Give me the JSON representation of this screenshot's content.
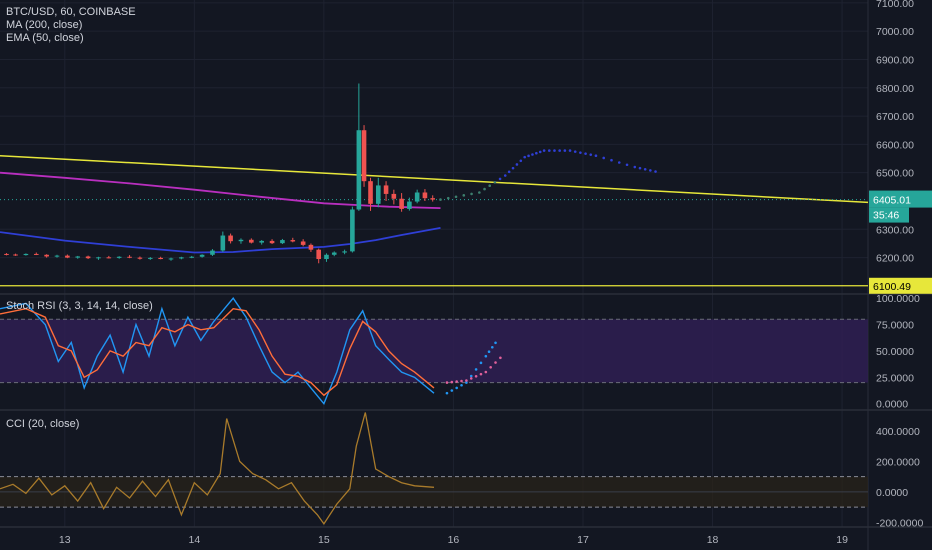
{
  "header": {
    "symbol": "BTC/USD, 60, COINBASE",
    "indicator_ma": "MA (200, close)",
    "indicator_ema": "EMA (50, close)"
  },
  "price_tags": {
    "last_price": "6405.01",
    "countdown": "35:46",
    "level_label": "6100.49"
  },
  "colors": {
    "background": "#131722",
    "up": "#26a69a",
    "down": "#ef5350",
    "ma_line": "#b92fbf",
    "ema_line": "#2f3fd6",
    "trend_line": "#e7e73a",
    "stoch_k": "#2196f3",
    "stoch_d": "#ff6d3a",
    "cci_line": "#a97b2b",
    "stoch_band": "#2f1f52"
  },
  "chart_data": [
    {
      "type": "candlestick",
      "title": "BTC/USD, 60, COINBASE",
      "x_ticks": [
        "13",
        "14",
        "15",
        "16",
        "17",
        "18",
        "19"
      ],
      "y_ticks": [
        "7100.00",
        "7000.00",
        "6900.00",
        "6800.00",
        "6700.00",
        "6600.00",
        "6500.00",
        "6300.00",
        "6200.00"
      ],
      "y_range": [
        6075,
        7110
      ],
      "x_range": [
        12.5,
        19.2
      ],
      "last_price": 6405.01,
      "horizontal_level": 6100.49,
      "trend_line": [
        [
          12.5,
          6560
        ],
        [
          19.2,
          6395
        ]
      ],
      "series": [
        {
          "name": "MA (200, close)",
          "values": [
            [
              12.5,
              6500
            ],
            [
              13.0,
              6482
            ],
            [
              13.5,
              6462
            ],
            [
              14.0,
              6440
            ],
            [
              14.5,
              6415
            ],
            [
              15.0,
              6392
            ],
            [
              15.5,
              6380
            ],
            [
              15.9,
              6375
            ]
          ]
        },
        {
          "name": "EMA (50, close)",
          "values": [
            [
              12.5,
              6290
            ],
            [
              13.0,
              6260
            ],
            [
              13.5,
              6238
            ],
            [
              14.0,
              6218
            ],
            [
              14.3,
              6220
            ],
            [
              14.6,
              6230
            ],
            [
              15.0,
              6238
            ],
            [
              15.2,
              6248
            ],
            [
              15.4,
              6262
            ],
            [
              15.6,
              6280
            ],
            [
              15.9,
              6305
            ]
          ]
        },
        {
          "name": "projection",
          "values": [
            [
              15.9,
              6405
            ],
            [
              16.2,
              6430
            ],
            [
              16.4,
              6490
            ],
            [
              16.55,
              6555
            ],
            [
              16.7,
              6578
            ],
            [
              16.9,
              6578
            ],
            [
              17.1,
              6560
            ],
            [
              17.4,
              6520
            ],
            [
              17.6,
              6500
            ]
          ]
        }
      ],
      "candles": [
        [
          12.55,
          6213,
          6216,
          6208,
          6211
        ],
        [
          12.62,
          6211,
          6214,
          6206,
          6209
        ],
        [
          12.7,
          6209,
          6215,
          6207,
          6213
        ],
        [
          12.78,
          6213,
          6218,
          6209,
          6210
        ],
        [
          12.86,
          6210,
          6212,
          6200,
          6204
        ],
        [
          12.94,
          6204,
          6210,
          6200,
          6207
        ],
        [
          13.02,
          6207,
          6211,
          6198,
          6200
        ],
        [
          13.1,
          6200,
          6206,
          6196,
          6204
        ],
        [
          13.18,
          6204,
          6207,
          6195,
          6198
        ],
        [
          13.26,
          6198,
          6203,
          6192,
          6201
        ],
        [
          13.34,
          6201,
          6206,
          6197,
          6199
        ],
        [
          13.42,
          6199,
          6205,
          6196,
          6203
        ],
        [
          13.5,
          6203,
          6209,
          6198,
          6200
        ],
        [
          13.58,
          6200,
          6204,
          6193,
          6196
        ],
        [
          13.66,
          6196,
          6202,
          6192,
          6199
        ],
        [
          13.74,
          6199,
          6203,
          6194,
          6195
        ],
        [
          13.82,
          6195,
          6200,
          6189,
          6197
        ],
        [
          13.9,
          6197,
          6203,
          6194,
          6201
        ],
        [
          13.98,
          6201,
          6206,
          6198,
          6203
        ],
        [
          14.06,
          6203,
          6212,
          6200,
          6210
        ],
        [
          14.14,
          6210,
          6230,
          6206,
          6225
        ],
        [
          14.22,
          6225,
          6292,
          6220,
          6278
        ],
        [
          14.28,
          6278,
          6285,
          6250,
          6258
        ],
        [
          14.36,
          6258,
          6268,
          6249,
          6263
        ],
        [
          14.44,
          6263,
          6268,
          6250,
          6253
        ],
        [
          14.52,
          6253,
          6262,
          6246,
          6259
        ],
        [
          14.6,
          6259,
          6265,
          6248,
          6251
        ],
        [
          14.68,
          6251,
          6266,
          6248,
          6262
        ],
        [
          14.76,
          6262,
          6270,
          6254,
          6257
        ],
        [
          14.84,
          6257,
          6265,
          6240,
          6245
        ],
        [
          14.9,
          6245,
          6250,
          6220,
          6228
        ],
        [
          14.96,
          6228,
          6232,
          6180,
          6195
        ],
        [
          15.02,
          6195,
          6215,
          6185,
          6210
        ],
        [
          15.08,
          6210,
          6222,
          6205,
          6218
        ],
        [
          15.16,
          6218,
          6228,
          6212,
          6222
        ],
        [
          15.22,
          6222,
          6380,
          6218,
          6370
        ],
        [
          15.27,
          6370,
          6815,
          6365,
          6650
        ],
        [
          15.31,
          6650,
          6668,
          6450,
          6470
        ],
        [
          15.36,
          6470,
          6482,
          6365,
          6390
        ],
        [
          15.42,
          6390,
          6482,
          6378,
          6455
        ],
        [
          15.48,
          6455,
          6470,
          6400,
          6425
        ],
        [
          15.54,
          6425,
          6440,
          6388,
          6408
        ],
        [
          15.6,
          6408,
          6428,
          6362,
          6372
        ],
        [
          15.66,
          6372,
          6412,
          6366,
          6398
        ],
        [
          15.72,
          6398,
          6440,
          6392,
          6430
        ],
        [
          15.78,
          6430,
          6442,
          6400,
          6410
        ],
        [
          15.84,
          6410,
          6420,
          6398,
          6405
        ]
      ]
    },
    {
      "type": "line",
      "title": "Stoch RSI (3, 3, 14, 14, close)",
      "y_ticks": [
        "100.0000",
        "75.0000",
        "50.0000",
        "25.0000",
        "0.0000"
      ],
      "y_range": [
        -5,
        103
      ],
      "band": [
        20,
        80
      ],
      "series": [
        {
          "name": "K",
          "values": [
            [
              12.5,
              90
            ],
            [
              12.7,
              95
            ],
            [
              12.85,
              75
            ],
            [
              12.95,
              40
            ],
            [
              13.05,
              58
            ],
            [
              13.15,
              15
            ],
            [
              13.25,
              45
            ],
            [
              13.35,
              65
            ],
            [
              13.45,
              30
            ],
            [
              13.55,
              75
            ],
            [
              13.65,
              45
            ],
            [
              13.75,
              90
            ],
            [
              13.85,
              55
            ],
            [
              13.95,
              82
            ],
            [
              14.05,
              60
            ],
            [
              14.15,
              78
            ],
            [
              14.3,
              100
            ],
            [
              14.4,
              82
            ],
            [
              14.5,
              55
            ],
            [
              14.6,
              30
            ],
            [
              14.7,
              20
            ],
            [
              14.8,
              30
            ],
            [
              14.9,
              15
            ],
            [
              15.0,
              0
            ],
            [
              15.1,
              30
            ],
            [
              15.2,
              70
            ],
            [
              15.3,
              88
            ],
            [
              15.4,
              55
            ],
            [
              15.5,
              42
            ],
            [
              15.6,
              30
            ],
            [
              15.7,
              25
            ],
            [
              15.85,
              10
            ]
          ]
        },
        {
          "name": "D",
          "values": [
            [
              12.5,
              85
            ],
            [
              12.7,
              90
            ],
            [
              12.85,
              82
            ],
            [
              12.95,
              55
            ],
            [
              13.05,
              50
            ],
            [
              13.15,
              25
            ],
            [
              13.25,
              32
            ],
            [
              13.35,
              50
            ],
            [
              13.45,
              45
            ],
            [
              13.55,
              58
            ],
            [
              13.65,
              55
            ],
            [
              13.75,
              72
            ],
            [
              13.85,
              68
            ],
            [
              13.95,
              75
            ],
            [
              14.05,
              70
            ],
            [
              14.15,
              72
            ],
            [
              14.3,
              90
            ],
            [
              14.4,
              88
            ],
            [
              14.5,
              70
            ],
            [
              14.6,
              45
            ],
            [
              14.7,
              28
            ],
            [
              14.8,
              26
            ],
            [
              14.9,
              20
            ],
            [
              15.0,
              8
            ],
            [
              15.1,
              18
            ],
            [
              15.2,
              52
            ],
            [
              15.3,
              78
            ],
            [
              15.4,
              68
            ],
            [
              15.5,
              50
            ],
            [
              15.6,
              38
            ],
            [
              15.7,
              30
            ],
            [
              15.85,
              15
            ]
          ]
        },
        {
          "name": "K projection",
          "values": [
            [
              15.95,
              10
            ],
            [
              16.1,
              20
            ],
            [
              16.25,
              45
            ],
            [
              16.35,
              62
            ]
          ]
        },
        {
          "name": "D projection",
          "values": [
            [
              15.95,
              20
            ],
            [
              16.1,
              22
            ],
            [
              16.25,
              30
            ],
            [
              16.4,
              48
            ]
          ]
        }
      ]
    },
    {
      "type": "line",
      "title": "CCI (20, close)",
      "y_ticks": [
        "400.0000",
        "200.0000",
        "0.0000",
        "-200.0000"
      ],
      "y_range": [
        -230,
        530
      ],
      "band": [
        -100,
        100
      ],
      "series": [
        {
          "name": "CCI",
          "values": [
            [
              12.5,
              20
            ],
            [
              12.6,
              50
            ],
            [
              12.7,
              -10
            ],
            [
              12.8,
              90
            ],
            [
              12.9,
              -20
            ],
            [
              13.0,
              40
            ],
            [
              13.1,
              -60
            ],
            [
              13.2,
              60
            ],
            [
              13.3,
              -110
            ],
            [
              13.4,
              30
            ],
            [
              13.5,
              -40
            ],
            [
              13.6,
              70
            ],
            [
              13.7,
              -30
            ],
            [
              13.8,
              80
            ],
            [
              13.9,
              -150
            ],
            [
              14.0,
              60
            ],
            [
              14.1,
              -20
            ],
            [
              14.2,
              120
            ],
            [
              14.25,
              480
            ],
            [
              14.35,
              200
            ],
            [
              14.45,
              120
            ],
            [
              14.55,
              80
            ],
            [
              14.65,
              20
            ],
            [
              14.75,
              60
            ],
            [
              14.85,
              -60
            ],
            [
              14.95,
              -150
            ],
            [
              15.0,
              -210
            ],
            [
              15.1,
              -80
            ],
            [
              15.2,
              20
            ],
            [
              15.25,
              300
            ],
            [
              15.32,
              520
            ],
            [
              15.4,
              150
            ],
            [
              15.5,
              100
            ],
            [
              15.6,
              60
            ],
            [
              15.7,
              40
            ],
            [
              15.85,
              30
            ]
          ]
        }
      ]
    }
  ]
}
